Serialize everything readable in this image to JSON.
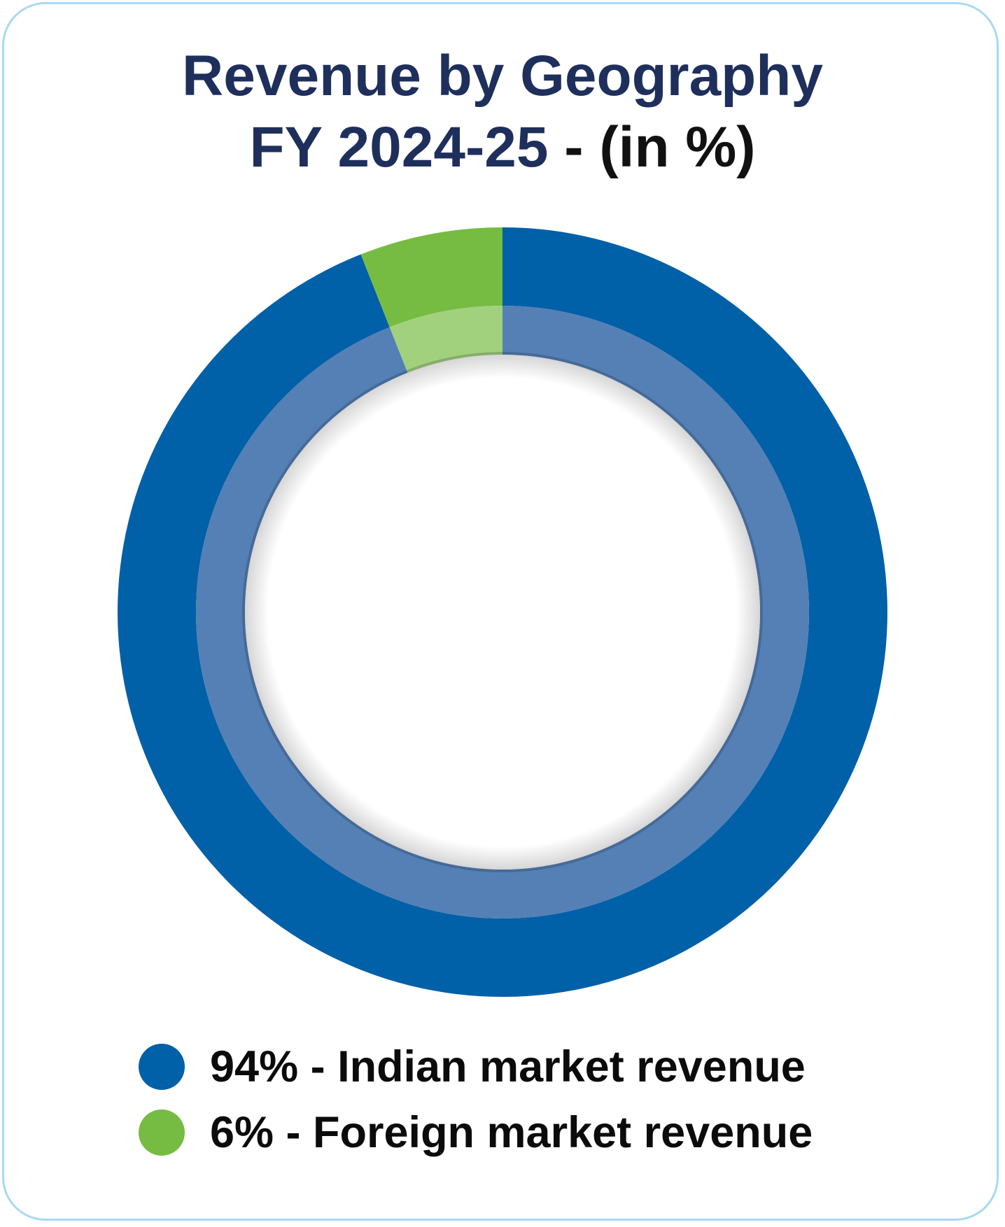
{
  "title": {
    "line1": "Revenue by Geography",
    "line2_main": "FY 2024-25",
    "line2_unit": " - (in %)"
  },
  "colors": {
    "border": "#a9d9f2",
    "title": "#1e2f5c",
    "indian": "#0060a8",
    "indian_inner": "#5480b6",
    "foreign": "#76bc43",
    "foreign_inner": "#a2d17e"
  },
  "chart_data": {
    "type": "pie",
    "title": "Revenue by Geography FY 2024-25 - (in %)",
    "categories": [
      "Indian market revenue",
      "Foreign market revenue"
    ],
    "values": [
      94,
      6
    ],
    "legend_position": "bottom"
  },
  "legend": [
    {
      "label": "94% - Indian market revenue",
      "color": "#0060a8"
    },
    {
      "label": "6% - Foreign market revenue",
      "color": "#76bc43"
    }
  ]
}
